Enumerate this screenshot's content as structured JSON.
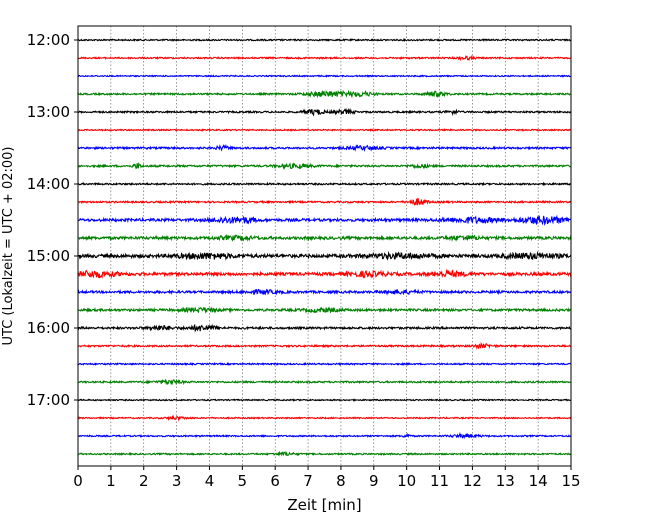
{
  "chart_data": {
    "type": "line",
    "title": "",
    "xlabel": "Zeit  [min]",
    "ylabel": "UTC (Lokalzeit = UTC + 02:00)",
    "xlim": [
      0,
      15
    ],
    "x_ticks": [
      "0",
      "1",
      "2",
      "3",
      "4",
      "5",
      "6",
      "7",
      "8",
      "9",
      "10",
      "11",
      "12",
      "13",
      "14",
      "15"
    ],
    "grid": "vertical dotted at each minute",
    "y_ticks": [
      {
        "label": "12:00",
        "trace": 0
      },
      {
        "label": "13:00",
        "trace": 4
      },
      {
        "label": "14:00",
        "trace": 8
      },
      {
        "label": "15:00",
        "trace": 12
      },
      {
        "label": "16:00",
        "trace": 16
      },
      {
        "label": "17:00",
        "trace": 20
      }
    ],
    "trace_colors": [
      "#000000",
      "#ff0000",
      "#0000ff",
      "#008000"
    ],
    "traces": [
      {
        "start": "12:00",
        "color": "#000000",
        "noise": 0.7,
        "bursts": []
      },
      {
        "start": "12:15",
        "color": "#ff0000",
        "noise": 0.7,
        "bursts": [
          [
            11.8,
            0.25,
            1.3
          ]
        ]
      },
      {
        "start": "12:30",
        "color": "#0000ff",
        "noise": 0.6,
        "bursts": []
      },
      {
        "start": "12:45",
        "color": "#008000",
        "noise": 0.8,
        "bursts": [
          [
            7.6,
            0.6,
            2.6
          ],
          [
            8.6,
            0.4,
            2.0
          ],
          [
            10.9,
            0.3,
            2.2
          ]
        ]
      },
      {
        "start": "13:00",
        "color": "#000000",
        "noise": 0.8,
        "bursts": [
          [
            7.2,
            0.3,
            2.4
          ],
          [
            8.1,
            0.3,
            1.8
          ],
          [
            11.4,
            0.2,
            1.6
          ]
        ]
      },
      {
        "start": "13:15",
        "color": "#ff0000",
        "noise": 0.6,
        "bursts": []
      },
      {
        "start": "13:30",
        "color": "#0000ff",
        "noise": 0.9,
        "bursts": [
          [
            4.4,
            0.2,
            1.8
          ],
          [
            8.7,
            0.5,
            1.6
          ]
        ]
      },
      {
        "start": "13:45",
        "color": "#008000",
        "noise": 0.9,
        "bursts": [
          [
            1.8,
            0.12,
            2.4
          ],
          [
            6.6,
            0.5,
            1.7
          ],
          [
            10.4,
            0.3,
            1.4
          ]
        ]
      },
      {
        "start": "14:00",
        "color": "#000000",
        "noise": 0.8,
        "bursts": []
      },
      {
        "start": "14:15",
        "color": "#ff0000",
        "noise": 0.8,
        "bursts": [
          [
            10.35,
            0.25,
            3.0
          ]
        ]
      },
      {
        "start": "14:30",
        "color": "#0000ff",
        "noise": 1.3,
        "bursts": [
          [
            4.5,
            0.4,
            2.3
          ],
          [
            5.1,
            0.3,
            2.2
          ],
          [
            12.0,
            0.8,
            2.2
          ],
          [
            14.1,
            0.7,
            3.2
          ]
        ]
      },
      {
        "start": "14:45",
        "color": "#008000",
        "noise": 1.3,
        "bursts": [
          [
            4.8,
            0.6,
            1.4
          ],
          [
            11.8,
            0.5,
            1.5
          ]
        ]
      },
      {
        "start": "15:00",
        "color": "#000000",
        "noise": 1.6,
        "bursts": [
          [
            3.9,
            0.8,
            2.2
          ],
          [
            9.8,
            1.0,
            2.0
          ],
          [
            13.8,
            0.8,
            2.2
          ]
        ]
      },
      {
        "start": "15:15",
        "color": "#ff0000",
        "noise": 1.4,
        "bursts": [
          [
            0.5,
            0.7,
            2.6
          ],
          [
            8.8,
            0.6,
            2.0
          ],
          [
            11.3,
            0.5,
            2.2
          ]
        ]
      },
      {
        "start": "15:30",
        "color": "#0000ff",
        "noise": 1.1,
        "bursts": [
          [
            5.6,
            0.5,
            1.5
          ],
          [
            9.8,
            0.5,
            1.5
          ]
        ]
      },
      {
        "start": "15:45",
        "color": "#008000",
        "noise": 1.1,
        "bursts": [
          [
            3.7,
            0.5,
            1.6
          ],
          [
            7.4,
            0.5,
            1.5
          ]
        ]
      },
      {
        "start": "16:00",
        "color": "#000000",
        "noise": 1.0,
        "bursts": [
          [
            2.5,
            0.4,
            1.8
          ],
          [
            3.8,
            0.4,
            2.6
          ]
        ]
      },
      {
        "start": "16:15",
        "color": "#ff0000",
        "noise": 0.8,
        "bursts": [
          [
            12.3,
            0.3,
            1.6
          ]
        ]
      },
      {
        "start": "16:30",
        "color": "#0000ff",
        "noise": 0.7,
        "bursts": []
      },
      {
        "start": "16:45",
        "color": "#008000",
        "noise": 0.8,
        "bursts": [
          [
            2.8,
            0.4,
            1.6
          ]
        ]
      },
      {
        "start": "17:00",
        "color": "#000000",
        "noise": 0.6,
        "bursts": []
      },
      {
        "start": "17:15",
        "color": "#ff0000",
        "noise": 0.6,
        "bursts": [
          [
            3.0,
            0.3,
            1.2
          ]
        ]
      },
      {
        "start": "17:30",
        "color": "#0000ff",
        "noise": 0.7,
        "bursts": [
          [
            10.0,
            0.1,
            1.6
          ],
          [
            11.8,
            0.4,
            1.6
          ]
        ]
      },
      {
        "start": "17:45",
        "color": "#008000",
        "noise": 0.7,
        "bursts": [
          [
            6.3,
            0.3,
            1.3
          ]
        ]
      }
    ]
  }
}
